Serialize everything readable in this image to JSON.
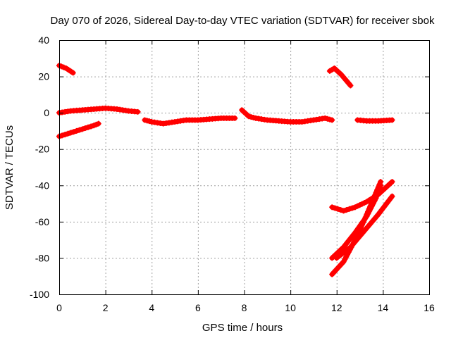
{
  "chart_data": {
    "type": "scatter",
    "title": "Day 070 of 2026, Sidereal Day-to-day VTEC variation (SDTVAR) for receiver sbok",
    "xlabel": "GPS time / hours",
    "ylabel": "SDTVAR / TECUs",
    "xlim": [
      0,
      16
    ],
    "ylim": [
      -100,
      40
    ],
    "xticks": [
      0,
      2,
      4,
      6,
      8,
      10,
      12,
      14,
      16
    ],
    "yticks": [
      -100,
      -80,
      -60,
      -40,
      -20,
      0,
      20,
      40
    ],
    "grid": true,
    "legend": "none",
    "marker": "plus",
    "color": "#ff0000",
    "series": [
      {
        "points": [
          [
            0.0,
            26.0
          ],
          [
            0.3,
            24.5
          ],
          [
            0.6,
            22.0
          ]
        ]
      },
      {
        "points": [
          [
            0.0,
            -13.0
          ],
          [
            0.5,
            -11.0
          ],
          [
            1.0,
            -9.0
          ],
          [
            1.5,
            -7.0
          ],
          [
            1.7,
            -6.0
          ]
        ]
      },
      {
        "points": [
          [
            0.0,
            0.0
          ],
          [
            0.5,
            1.0
          ],
          [
            1.0,
            1.5
          ],
          [
            1.5,
            2.0
          ],
          [
            2.0,
            2.5
          ],
          [
            2.5,
            2.0
          ],
          [
            3.0,
            1.0
          ],
          [
            3.4,
            0.5
          ]
        ]
      },
      {
        "points": [
          [
            3.7,
            -4.0
          ],
          [
            4.0,
            -5.0
          ],
          [
            4.5,
            -6.0
          ],
          [
            5.0,
            -5.0
          ],
          [
            5.5,
            -4.0
          ],
          [
            6.0,
            -4.0
          ],
          [
            6.5,
            -3.5
          ],
          [
            7.0,
            -3.0
          ],
          [
            7.6,
            -3.0
          ]
        ]
      },
      {
        "points": [
          [
            7.9,
            1.5
          ],
          [
            8.2,
            -2.0
          ],
          [
            8.5,
            -3.0
          ],
          [
            9.0,
            -4.0
          ],
          [
            9.5,
            -4.5
          ],
          [
            10.0,
            -5.0
          ],
          [
            10.5,
            -5.0
          ],
          [
            11.0,
            -4.0
          ],
          [
            11.5,
            -3.0
          ],
          [
            11.8,
            -4.0
          ]
        ]
      },
      {
        "points": [
          [
            11.7,
            23.0
          ],
          [
            11.9,
            24.5
          ],
          [
            12.2,
            21.0
          ],
          [
            12.6,
            15.0
          ]
        ]
      },
      {
        "points": [
          [
            12.9,
            -4.0
          ],
          [
            13.3,
            -4.5
          ],
          [
            13.8,
            -4.5
          ],
          [
            14.4,
            -4.0
          ]
        ]
      },
      {
        "points": [
          [
            11.8,
            -52.0
          ],
          [
            12.3,
            -54.0
          ],
          [
            12.8,
            -52.0
          ],
          [
            13.3,
            -49.0
          ],
          [
            13.8,
            -45.0
          ],
          [
            14.4,
            -38.0
          ]
        ]
      },
      {
        "points": [
          [
            11.8,
            -80.0
          ],
          [
            12.3,
            -74.0
          ],
          [
            12.8,
            -66.0
          ],
          [
            13.3,
            -57.0
          ],
          [
            13.7,
            -47.0
          ],
          [
            13.9,
            -40.0
          ]
        ]
      },
      {
        "points": [
          [
            11.8,
            -89.0
          ],
          [
            12.3,
            -82.0
          ],
          [
            12.8,
            -70.0
          ],
          [
            13.2,
            -59.0
          ],
          [
            13.6,
            -47.0
          ],
          [
            13.9,
            -38.0
          ]
        ]
      },
      {
        "points": [
          [
            12.0,
            -80.0
          ],
          [
            12.6,
            -74.0
          ],
          [
            13.2,
            -65.0
          ],
          [
            13.8,
            -56.0
          ],
          [
            14.4,
            -46.0
          ]
        ]
      }
    ]
  }
}
